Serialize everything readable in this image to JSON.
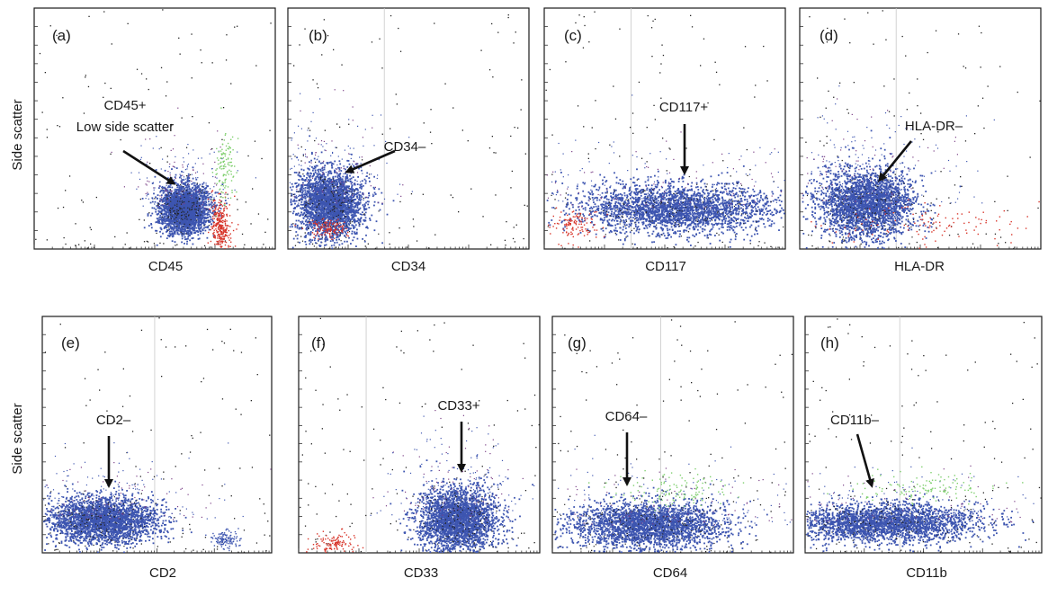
{
  "figure": {
    "ylabel": "Side scatter"
  },
  "colors": {
    "population_main": "#3d55b0",
    "population_red": "#d8352a",
    "population_green": "#7fcf6e",
    "population_purple": "#7a3f86",
    "background_events": "#222222"
  },
  "chart_data": [
    {
      "type": "scatter",
      "panel": "(a)",
      "xlabel": "CD45",
      "ylabel": "Side scatter",
      "annotation": {
        "lines": [
          "CD45+",
          "Low side scatter"
        ]
      },
      "populations": [
        {
          "color": "blue",
          "center": [
            0.62,
            0.17
          ],
          "spread": [
            0.05,
            0.05
          ],
          "density": "high"
        },
        {
          "color": "red",
          "center": [
            0.77,
            0.1
          ],
          "spread": [
            0.02,
            0.06
          ],
          "density": "medium"
        },
        {
          "color": "green",
          "center": [
            0.79,
            0.33
          ],
          "spread": [
            0.02,
            0.08
          ],
          "density": "low"
        }
      ]
    },
    {
      "type": "scatter",
      "panel": "(b)",
      "xlabel": "CD34",
      "ylabel": "Side scatter",
      "annotation": {
        "lines": [
          "CD34–"
        ]
      },
      "populations": [
        {
          "color": "blue",
          "center": [
            0.17,
            0.19
          ],
          "spread": [
            0.07,
            0.07
          ],
          "density": "high"
        },
        {
          "color": "red",
          "center": [
            0.16,
            0.09
          ],
          "spread": [
            0.04,
            0.02
          ],
          "density": "low"
        }
      ]
    },
    {
      "type": "scatter",
      "panel": "(c)",
      "xlabel": "CD117",
      "ylabel": "Side scatter",
      "annotation": {
        "lines": [
          "CD117+"
        ]
      },
      "populations": [
        {
          "color": "blue",
          "center": [
            0.55,
            0.17
          ],
          "spread": [
            0.2,
            0.05
          ],
          "density": "high"
        },
        {
          "color": "red",
          "center": [
            0.13,
            0.1
          ],
          "spread": [
            0.05,
            0.03
          ],
          "density": "low"
        }
      ]
    },
    {
      "type": "scatter",
      "panel": "(d)",
      "xlabel": "HLA-DR",
      "ylabel": "Side scatter",
      "annotation": {
        "lines": [
          "HLA-DR–"
        ]
      },
      "populations": [
        {
          "color": "blue",
          "center": [
            0.27,
            0.19
          ],
          "spread": [
            0.1,
            0.07
          ],
          "density": "high"
        },
        {
          "color": "red",
          "center": [
            0.55,
            0.1
          ],
          "spread": [
            0.25,
            0.04
          ],
          "density": "low"
        }
      ]
    },
    {
      "type": "scatter",
      "panel": "(e)",
      "xlabel": "CD2",
      "ylabel": "Side scatter",
      "annotation": {
        "lines": [
          "CD2–"
        ]
      },
      "populations": [
        {
          "color": "blue",
          "center": [
            0.26,
            0.14
          ],
          "spread": [
            0.12,
            0.05
          ],
          "density": "high"
        },
        {
          "color": "blue",
          "center": [
            0.8,
            0.06
          ],
          "spread": [
            0.03,
            0.02
          ],
          "density": "low"
        }
      ]
    },
    {
      "type": "scatter",
      "panel": "(f)",
      "xlabel": "CD33",
      "ylabel": "Side scatter",
      "annotation": {
        "lines": [
          "CD33+"
        ]
      },
      "populations": [
        {
          "color": "blue",
          "center": [
            0.66,
            0.14
          ],
          "spread": [
            0.08,
            0.07
          ],
          "density": "high"
        },
        {
          "color": "red",
          "center": [
            0.14,
            0.04
          ],
          "spread": [
            0.05,
            0.02
          ],
          "density": "low"
        }
      ]
    },
    {
      "type": "scatter",
      "panel": "(g)",
      "xlabel": "CD64",
      "ylabel": "Side scatter",
      "annotation": {
        "lines": [
          "CD64–"
        ]
      },
      "populations": [
        {
          "color": "blue",
          "center": [
            0.4,
            0.12
          ],
          "spread": [
            0.16,
            0.05
          ],
          "density": "high"
        },
        {
          "color": "green",
          "center": [
            0.5,
            0.27
          ],
          "spread": [
            0.12,
            0.04
          ],
          "density": "low"
        }
      ]
    },
    {
      "type": "scatter",
      "panel": "(h)",
      "xlabel": "CD11b",
      "ylabel": "Side scatter",
      "annotation": {
        "lines": [
          "CD11b–"
        ]
      },
      "populations": [
        {
          "color": "blue",
          "center": [
            0.33,
            0.13
          ],
          "spread": [
            0.2,
            0.04
          ],
          "density": "high"
        },
        {
          "color": "green",
          "center": [
            0.5,
            0.28
          ],
          "spread": [
            0.15,
            0.03
          ],
          "density": "low"
        }
      ]
    }
  ]
}
